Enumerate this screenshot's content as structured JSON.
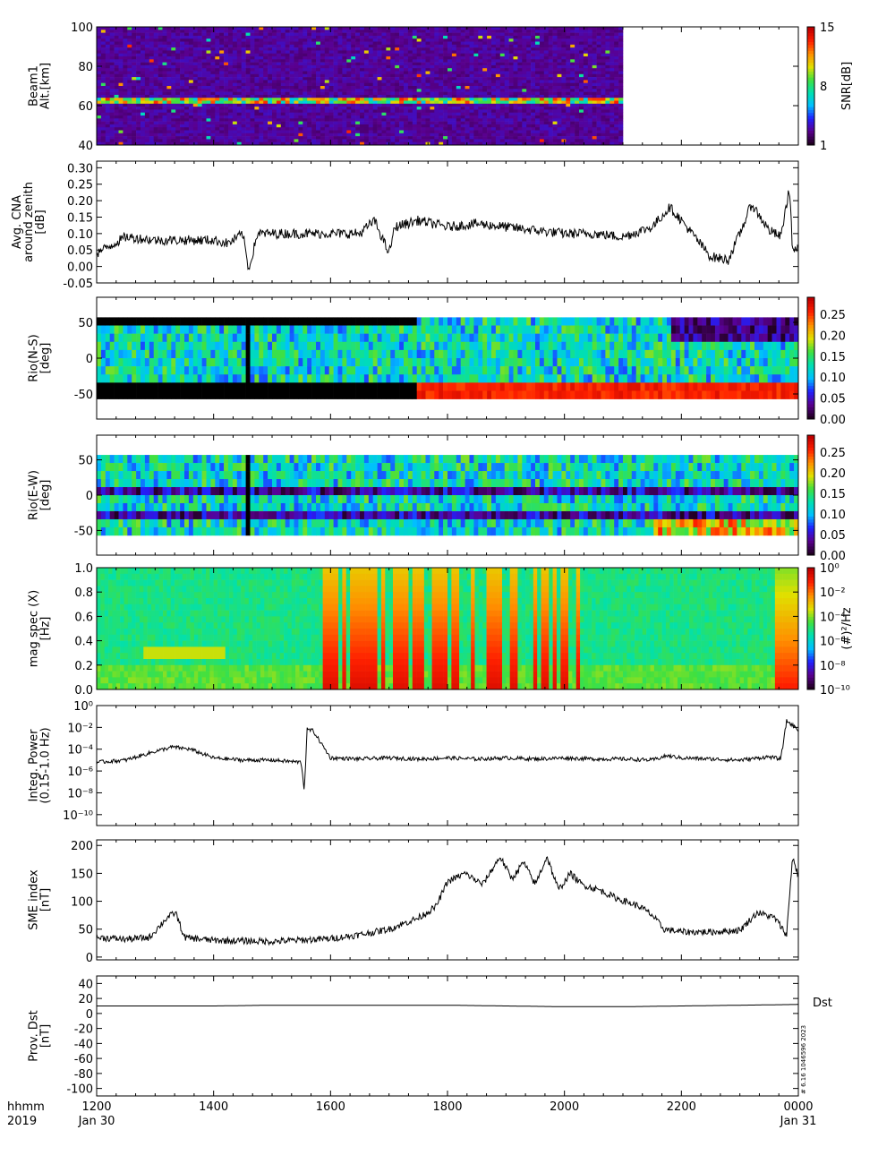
{
  "time_axis": {
    "ticks": [
      "1200",
      "1400",
      "1600",
      "1800",
      "2000",
      "2200",
      "0000"
    ],
    "prefix_line1": "hhmm",
    "prefix_line2": "2019",
    "start_date": "Jan 30",
    "end_date": "Jan 31"
  },
  "colors": {
    "trace": "#000000",
    "masked": "#000000",
    "colorscale": [
      "#200020",
      "#5a0090",
      "#2020ff",
      "#00c0ff",
      "#00e0b0",
      "#40e040",
      "#e0e000",
      "#ff9000",
      "#ff2000",
      "#c00000"
    ]
  },
  "chart_data": [
    {
      "id": "beam1",
      "type": "heatmap",
      "ylabel_lines": [
        "Beam1",
        "Alt.[km]"
      ],
      "ylim": [
        40,
        100
      ],
      "yticks": [
        "40",
        "60",
        "80",
        "100"
      ],
      "data_end_hour": 21.0,
      "colorbar": {
        "label": "SNR[dB]",
        "range": [
          1,
          15
        ],
        "ticks": [
          "1",
          "8",
          "15"
        ]
      }
    },
    {
      "id": "cna",
      "type": "line",
      "ylabel_lines": [
        "Avg. CNA",
        "around zenith",
        "[dB]"
      ],
      "ylim": [
        -0.05,
        0.32
      ],
      "yticks": [
        "-0.05",
        "0.00",
        "0.05",
        "0.10",
        "0.15",
        "0.20",
        "0.25",
        "0.30"
      ],
      "x_hours": [
        12.0,
        12.5,
        13.0,
        13.5,
        14.0,
        14.25,
        14.5,
        14.6,
        14.75,
        15.0,
        15.5,
        16.0,
        16.5,
        16.75,
        17.0,
        17.1,
        17.5,
        18.0,
        18.5,
        19.0,
        19.5,
        20.0,
        20.5,
        21.0,
        21.5,
        21.8,
        22.0,
        22.5,
        22.8,
        23.0,
        23.2,
        23.5,
        23.7,
        23.85,
        23.9,
        24.0
      ],
      "values": [
        0.04,
        0.09,
        0.08,
        0.08,
        0.08,
        0.07,
        0.1,
        -0.01,
        0.1,
        0.1,
        0.1,
        0.1,
        0.1,
        0.14,
        0.04,
        0.12,
        0.14,
        0.12,
        0.13,
        0.12,
        0.11,
        0.1,
        0.1,
        0.09,
        0.12,
        0.18,
        0.14,
        0.03,
        0.02,
        0.1,
        0.19,
        0.11,
        0.09,
        0.24,
        0.05,
        0.05
      ]
    },
    {
      "id": "rio_ns",
      "type": "heatmap",
      "ylabel_lines": [
        "Rio(N-S)",
        "[deg]"
      ],
      "ylim": [
        -85,
        85
      ],
      "yticks": [
        "-50",
        "0",
        "50"
      ],
      "colorbar": {
        "label": "",
        "range": [
          0.0,
          0.29
        ],
        "ticks": [
          "0.00",
          "0.05",
          "0.10",
          "0.15",
          "0.20",
          "0.25"
        ]
      }
    },
    {
      "id": "rio_ew",
      "type": "heatmap",
      "ylabel_lines": [
        "Rio(E-W)",
        "[deg]"
      ],
      "ylim": [
        -85,
        85
      ],
      "yticks": [
        "-50",
        "0",
        "50"
      ],
      "colorbar": {
        "label": "",
        "range": [
          0.0,
          0.29
        ],
        "ticks": [
          "0.00",
          "0.05",
          "0.10",
          "0.15",
          "0.20",
          "0.25"
        ]
      }
    },
    {
      "id": "magspec",
      "type": "heatmap",
      "ylabel_lines": [
        "mag spec (X)",
        "[Hz]"
      ],
      "ylim": [
        0.0,
        1.0
      ],
      "yticks": [
        "0.0",
        "0.2",
        "0.4",
        "0.6",
        "0.8",
        "1.0"
      ],
      "colorbar": {
        "label": "(#)²/Hz",
        "range_log10": [
          -10,
          0
        ],
        "ticks": [
          "10⁻¹⁰",
          "10⁻⁸",
          "10⁻⁶",
          "10⁻⁴",
          "10⁻²",
          "10⁰"
        ]
      }
    },
    {
      "id": "power",
      "type": "line",
      "ylabel_lines": [
        "Integ. Power",
        "(0.15-1.0 Hz)"
      ],
      "log_y": true,
      "ylim_log10": [
        -11,
        0
      ],
      "yticks": [
        "10⁻¹⁰",
        "10⁻⁸",
        "10⁻⁶",
        "10⁻⁴",
        "10⁻²",
        "10⁰"
      ],
      "x_hours": [
        12.0,
        12.5,
        13.0,
        13.3,
        13.6,
        14.0,
        14.5,
        15.0,
        15.5,
        15.55,
        15.6,
        15.7,
        16.0,
        16.5,
        17.0,
        17.5,
        18.0,
        18.5,
        19.0,
        19.5,
        20.0,
        20.5,
        21.0,
        21.5,
        21.75,
        22.0,
        22.5,
        23.0,
        23.5,
        23.7,
        23.8,
        24.0
      ],
      "values_log10": [
        -5.2,
        -5.0,
        -4.2,
        -3.8,
        -4.0,
        -4.8,
        -5.0,
        -5.0,
        -5.2,
        -7.8,
        -2.2,
        -2.3,
        -4.8,
        -4.9,
        -4.8,
        -4.9,
        -4.8,
        -4.9,
        -4.8,
        -4.9,
        -4.8,
        -4.9,
        -4.9,
        -5.0,
        -4.6,
        -4.8,
        -4.9,
        -5.0,
        -4.7,
        -4.9,
        -1.4,
        -2.2
      ]
    },
    {
      "id": "sme",
      "type": "line",
      "ylabel_lines": [
        "SME index",
        "[nT]"
      ],
      "ylim": [
        -5,
        210
      ],
      "yticks": [
        "0",
        "50",
        "100",
        "150",
        "200"
      ],
      "x_hours": [
        12.0,
        12.5,
        12.9,
        13.2,
        13.35,
        13.5,
        14.0,
        15.0,
        16.0,
        16.5,
        17.0,
        17.5,
        17.8,
        18.0,
        18.3,
        18.6,
        18.9,
        19.1,
        19.3,
        19.5,
        19.7,
        19.9,
        20.1,
        20.3,
        20.6,
        20.9,
        21.3,
        21.5,
        21.7,
        22.0,
        22.5,
        23.0,
        23.3,
        23.6,
        23.8,
        23.9,
        24.0
      ],
      "values": [
        35,
        32,
        35,
        70,
        80,
        35,
        30,
        28,
        33,
        40,
        50,
        70,
        90,
        135,
        150,
        130,
        180,
        140,
        170,
        130,
        180,
        120,
        150,
        130,
        120,
        105,
        90,
        75,
        50,
        45,
        45,
        48,
        80,
        70,
        40,
        180,
        145
      ]
    },
    {
      "id": "dst",
      "type": "line",
      "ylabel_lines": [
        "Prov. Dst",
        "[nT]"
      ],
      "ylim": [
        -110,
        50
      ],
      "yticks": [
        "-100",
        "-80",
        "-60",
        "-40",
        "-20",
        "0",
        "20",
        "40"
      ],
      "series_label": "Dst",
      "x_hours": [
        12.0,
        13.0,
        14.0,
        15.0,
        16.0,
        17.0,
        18.0,
        19.0,
        20.0,
        21.0,
        22.0,
        23.0,
        24.0
      ],
      "values": [
        10,
        10,
        10,
        11,
        11,
        11,
        11,
        10,
        9,
        9,
        10,
        11,
        12
      ]
    }
  ],
  "stamp": "# 6.16 1046596 2023"
}
